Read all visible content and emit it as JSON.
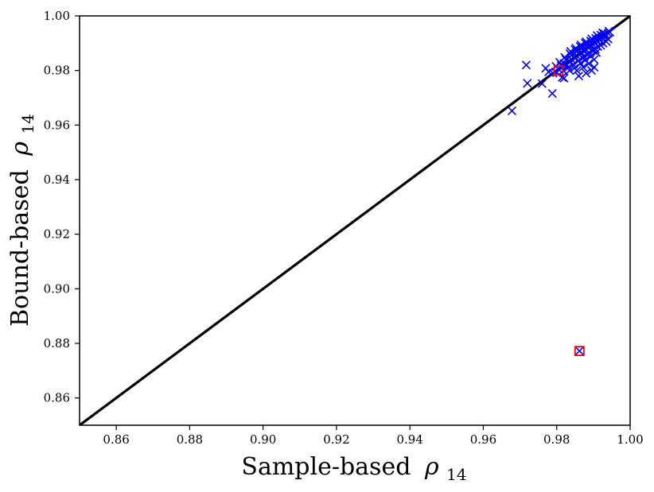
{
  "chart_data": {
    "type": "scatter",
    "xlabel": "Sample-based",
    "xlabel_symbol": "ρ",
    "xlabel_subscript": "14",
    "ylabel": "Bound-based",
    "ylabel_symbol": "ρ",
    "ylabel_subscript": "14",
    "xlim": [
      0.85,
      1.0
    ],
    "ylim": [
      0.85,
      1.0
    ],
    "x_ticks": [
      "0.86",
      "0.88",
      "0.90",
      "0.92",
      "0.94",
      "0.96",
      "0.98",
      "1.00"
    ],
    "y_ticks": [
      "0.86",
      "0.88",
      "0.90",
      "0.92",
      "0.94",
      "0.96",
      "0.98",
      "1.00"
    ],
    "grid": false,
    "reference_line": {
      "type": "identity",
      "from": [
        0.85,
        0.85
      ],
      "to": [
        1.0,
        1.0
      ],
      "color": "#000000"
    },
    "series": [
      {
        "marker": "x",
        "color": "#0000ff",
        "points": [
          [
            0.9678,
            0.9652
          ],
          [
            0.9717,
            0.982
          ],
          [
            0.972,
            0.9753
          ],
          [
            0.976,
            0.9752
          ],
          [
            0.9788,
            0.9716
          ],
          [
            0.977,
            0.9808
          ],
          [
            0.9778,
            0.9795
          ],
          [
            0.979,
            0.979
          ],
          [
            0.98,
            0.9792
          ],
          [
            0.9815,
            0.9775
          ],
          [
            0.982,
            0.9772
          ],
          [
            0.9835,
            0.98
          ],
          [
            0.986,
            0.978
          ],
          [
            0.988,
            0.979
          ],
          [
            0.9862,
            0.8772
          ],
          [
            0.9805,
            0.9805
          ],
          [
            0.9812,
            0.9818
          ],
          [
            0.982,
            0.9825
          ],
          [
            0.9828,
            0.982
          ],
          [
            0.9835,
            0.9832
          ],
          [
            0.9842,
            0.9838
          ],
          [
            0.985,
            0.9845
          ],
          [
            0.9856,
            0.9852
          ],
          [
            0.9862,
            0.9858
          ],
          [
            0.9868,
            0.9865
          ],
          [
            0.9874,
            0.987
          ],
          [
            0.988,
            0.9876
          ],
          [
            0.9886,
            0.9883
          ],
          [
            0.9892,
            0.989
          ],
          [
            0.9898,
            0.9896
          ],
          [
            0.9904,
            0.9902
          ],
          [
            0.991,
            0.9908
          ],
          [
            0.9916,
            0.9914
          ],
          [
            0.9922,
            0.992
          ],
          [
            0.9928,
            0.9926
          ],
          [
            0.9934,
            0.9931
          ],
          [
            0.994,
            0.9936
          ],
          [
            0.9945,
            0.994
          ],
          [
            0.9825,
            0.984
          ],
          [
            0.984,
            0.9855
          ],
          [
            0.9855,
            0.987
          ],
          [
            0.987,
            0.9884
          ],
          [
            0.9885,
            0.9897
          ],
          [
            0.99,
            0.991
          ],
          [
            0.9915,
            0.9922
          ],
          [
            0.993,
            0.9935
          ],
          [
            0.9845,
            0.9822
          ],
          [
            0.986,
            0.9836
          ],
          [
            0.9875,
            0.985
          ],
          [
            0.989,
            0.9864
          ],
          [
            0.9905,
            0.9878
          ],
          [
            0.992,
            0.9892
          ],
          [
            0.9935,
            0.9906
          ],
          [
            0.9818,
            0.98
          ],
          [
            0.9832,
            0.9812
          ],
          [
            0.9848,
            0.9808
          ],
          [
            0.9865,
            0.9826
          ],
          [
            0.9878,
            0.9838
          ],
          [
            0.9893,
            0.9852
          ],
          [
            0.9908,
            0.9866
          ],
          [
            0.9838,
            0.987
          ],
          [
            0.9852,
            0.9882
          ],
          [
            0.9866,
            0.9894
          ],
          [
            0.988,
            0.9905
          ],
          [
            0.9895,
            0.9916
          ],
          [
            0.991,
            0.9928
          ],
          [
            0.9925,
            0.9938
          ],
          [
            0.9942,
            0.9944
          ],
          [
            0.9798,
            0.9815
          ],
          [
            0.9808,
            0.983
          ],
          [
            0.9822,
            0.9848
          ],
          [
            0.9836,
            0.9862
          ],
          [
            0.985,
            0.9876
          ],
          [
            0.9864,
            0.9888
          ],
          [
            0.9878,
            0.99
          ],
          [
            0.9892,
            0.9908
          ],
          [
            0.9906,
            0.9918
          ],
          [
            0.992,
            0.993
          ],
          [
            0.987,
            0.9846
          ],
          [
            0.9884,
            0.986
          ],
          [
            0.9898,
            0.9874
          ],
          [
            0.9912,
            0.9888
          ],
          [
            0.9926,
            0.99
          ],
          [
            0.994,
            0.9915
          ],
          [
            0.9855,
            0.98
          ],
          [
            0.9872,
            0.9812
          ],
          [
            0.9887,
            0.9825
          ],
          [
            0.9902,
            0.984
          ],
          [
            0.9902,
            0.9812
          ],
          [
            0.9895,
            0.98
          ]
        ]
      }
    ],
    "highlighted": [
      {
        "marker": "square",
        "color": "#ff0000",
        "x": 0.9805,
        "y": 0.98
      },
      {
        "marker": "square",
        "color": "#ff0000",
        "x": 0.9862,
        "y": 0.8772
      }
    ]
  }
}
